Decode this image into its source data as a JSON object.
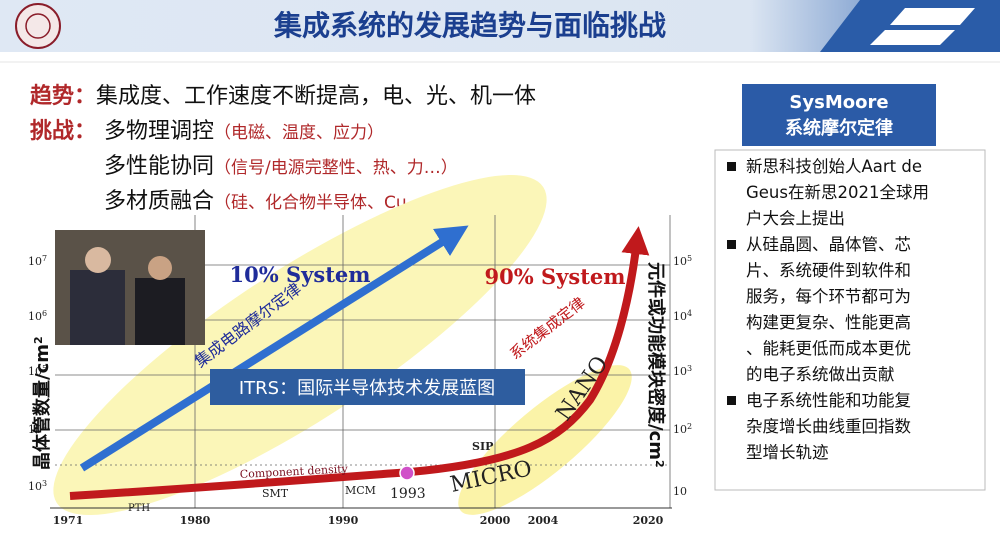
{
  "header": {
    "title": "集成系统的发展趋势与面临挑战"
  },
  "trend": {
    "label": "趋势：",
    "text": "集成度、工作速度不断提高，电、光、机一体"
  },
  "challenge": {
    "label": "挑战：",
    "items": [
      {
        "main": "多物理调控",
        "note": "（电磁、温度、应力）"
      },
      {
        "main": "多性能协同",
        "note": "（信号/电源完整性、热、力…）"
      },
      {
        "main": "多材质融合",
        "note": "（硅、化合物半导体、Cu、BCB…）"
      }
    ]
  },
  "figure": {
    "left_axis": {
      "label": "晶体管数量/cm",
      "label_exp": "2",
      "ticks": [
        {
          "base": "10",
          "exp": "7"
        },
        {
          "base": "10",
          "exp": "6"
        },
        {
          "base": "10",
          "exp": "5"
        },
        {
          "base": "10",
          "exp": "4"
        },
        {
          "base": "10",
          "exp": "3"
        }
      ]
    },
    "right_axis": {
      "label": "元件或功能模块密度/cm",
      "label_exp": "2",
      "ticks": [
        {
          "base": "10",
          "exp": "5"
        },
        {
          "base": "10",
          "exp": "4"
        },
        {
          "base": "10",
          "exp": "3"
        },
        {
          "base": "10",
          "exp": "2"
        },
        {
          "base": "10",
          "exp": ""
        }
      ]
    },
    "x_ticks": [
      "1971",
      "1980",
      "1990",
      "2000",
      "2004",
      "2020"
    ],
    "labels": {
      "system10": "10% System",
      "system90": "90% System",
      "moore": "集成电路摩尔定律",
      "sysint": "系统集成定律",
      "itrs": "ITRS：国际半导体技术发展蓝图",
      "component": "Component density",
      "pth": "PTH",
      "smt": "SMT",
      "mcm": "MCM",
      "y1993": "1993",
      "sip": "SIP",
      "micro": "MICRO",
      "nano": "NANO"
    }
  },
  "sidebar": {
    "title": "SysMoore",
    "subtitle": "系统摩尔定律",
    "bullets": [
      [
        "新思科技创始人Aart de",
        "Geus在新思2021全球用",
        "户大会上提出"
      ],
      [
        "从硅晶圆、晶体管、芯",
        "片、系统硬件到软件和",
        "服务，每个环节都可为",
        "构建更复杂、性能更高",
        "、能耗更低而成本更优",
        "的电子系统做出贡献"
      ],
      [
        "电子系统性能和功能复",
        "杂度增长曲线重回指数",
        "型增长轨迹"
      ]
    ]
  }
}
